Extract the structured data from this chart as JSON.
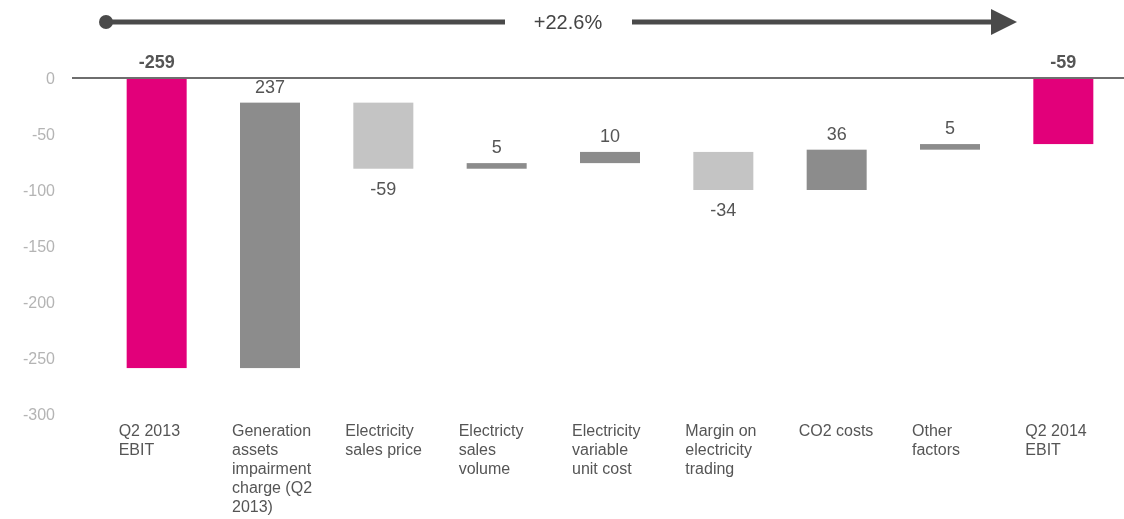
{
  "chart_data": {
    "type": "bar",
    "categories": [
      "Q2 2013 EBIT",
      "Generation assets impairment charge (Q2 2013)",
      "Electricity sales price",
      "Electricty sales volume",
      "Electricity variable unit cost",
      "Margin on electricity trading",
      "CO2 costs",
      "Other factors",
      "Q2 2014 EBIT"
    ],
    "values": [
      -259,
      237,
      -59,
      5,
      10,
      -34,
      36,
      5,
      -59
    ],
    "base": [
      0,
      -259,
      -22,
      -81,
      -76,
      -66,
      -100,
      -64,
      0
    ],
    "colors": [
      "#e2007a",
      "#8c8c8c",
      "#c4c4c4",
      "#8c8c8c",
      "#8c8c8c",
      "#c4c4c4",
      "#8c8c8c",
      "#8c8c8c",
      "#e2007a"
    ],
    "data_labels": true,
    "ylim": [
      -300,
      0
    ],
    "yticks": [
      0,
      -50,
      -100,
      -150,
      -200,
      -250,
      -300
    ],
    "grid": false,
    "annotations": [
      "+22.6%"
    ]
  }
}
